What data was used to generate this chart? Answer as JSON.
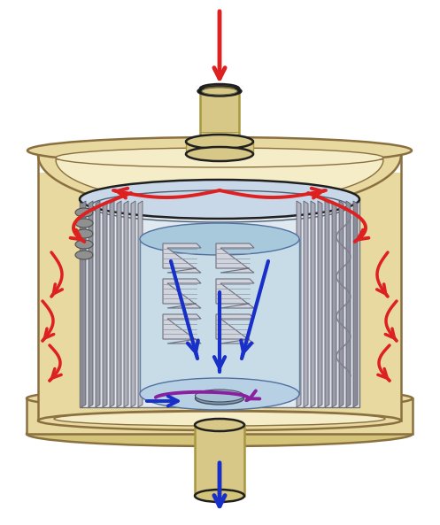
{
  "bg_color": "#ffffff",
  "body_color": "#e8d9a0",
  "body_color2": "#d4c47a",
  "body_edge": "#8a7040",
  "inner_wall": "#f5ecc8",
  "filter_light": "#d8d8dc",
  "filter_mid": "#b8b8c0",
  "filter_dark": "#909098",
  "center_fill": "#c8dce8",
  "center_fill2": "#a8c8dc",
  "red_arrow": "#dd2020",
  "blue_arrow": "#1830c8",
  "purple_arrow": "#8820a0",
  "pipe_color": "#d8c888",
  "pipe_dark": "#a89840",
  "dark_line": "#202020",
  "coil_color": "#704020",
  "figsize": [
    4.97,
    5.93
  ],
  "dpi": 100
}
